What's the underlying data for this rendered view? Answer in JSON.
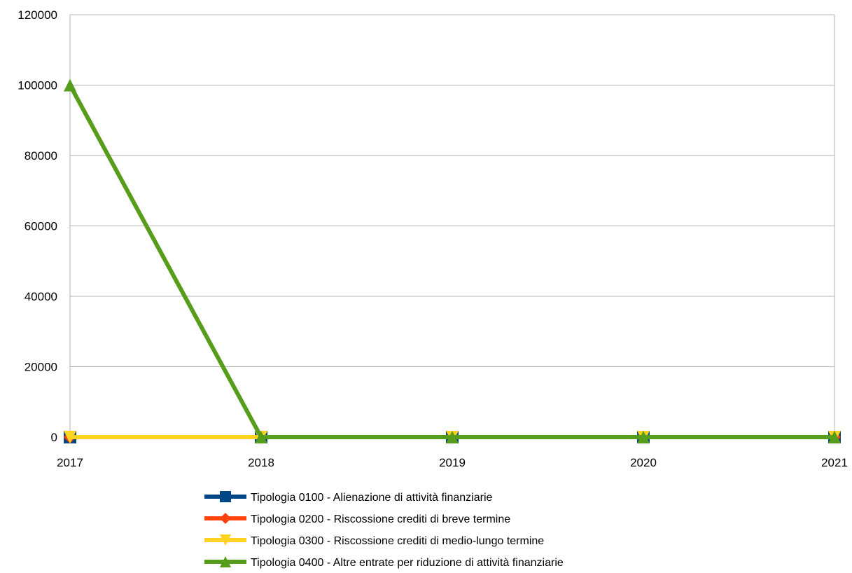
{
  "chart_data": {
    "type": "line",
    "title": "",
    "xlabel": "",
    "ylabel": "",
    "categories": [
      "2017",
      "2018",
      "2019",
      "2020",
      "2021"
    ],
    "ylim": [
      0,
      120000
    ],
    "yticks": [
      0,
      20000,
      40000,
      60000,
      80000,
      100000,
      120000
    ],
    "ytick_labels": [
      "0",
      "20000",
      "40000",
      "60000",
      "80000",
      "100000",
      "120000"
    ],
    "grid": true,
    "legend_position": "bottom",
    "series": [
      {
        "name": "Tipologia 0100 - Alienazione di attività finanziarie",
        "values": [
          0,
          0,
          0,
          0,
          0
        ],
        "color": "#004586",
        "marker": "square"
      },
      {
        "name": "Tipologia 0200 - Riscossione crediti di breve termine",
        "values": [
          0,
          0,
          0,
          0,
          0
        ],
        "color": "#ff420e",
        "marker": "diamond"
      },
      {
        "name": "Tipologia 0300 - Riscossione crediti di medio-lungo termine",
        "values": [
          0,
          0,
          0,
          0,
          0
        ],
        "color": "#ffd320",
        "marker": "triangle-down"
      },
      {
        "name": "Tipologia 0400 - Altre entrate per riduzione di attività finanziarie",
        "values": [
          100000,
          0,
          0,
          0,
          0
        ],
        "color": "#579d1c",
        "marker": "triangle-up"
      }
    ]
  }
}
